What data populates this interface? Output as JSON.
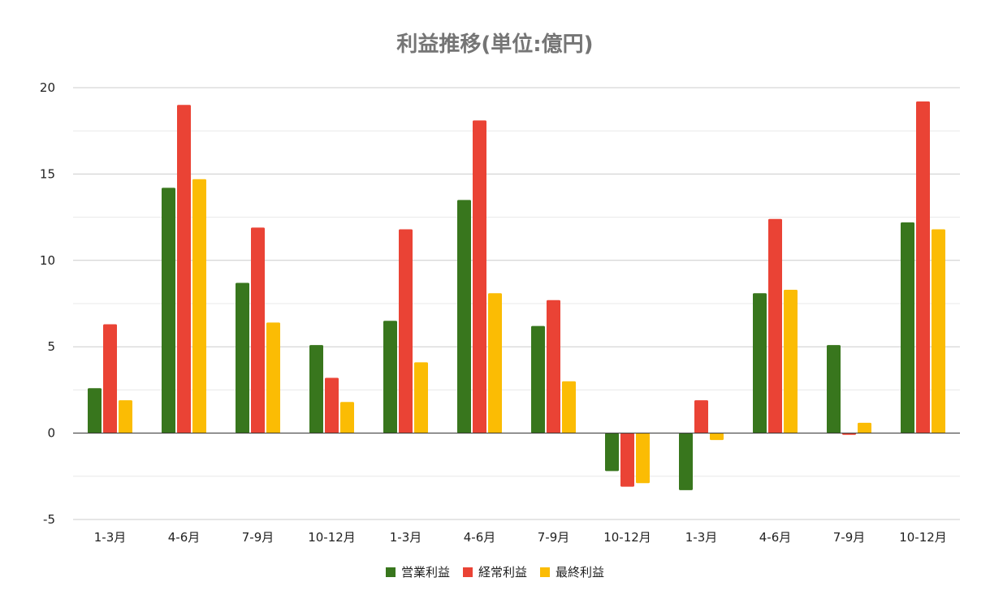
{
  "chart_data": {
    "type": "bar",
    "title": "利益推移(単位:億円)",
    "xlabel": "",
    "ylabel": "",
    "ylim": [
      -5,
      20
    ],
    "yticks": [
      -5,
      0,
      5,
      10,
      15,
      20
    ],
    "grid": true,
    "legend_position": "bottom",
    "categories": [
      "1-3月",
      "4-6月",
      "7-9月",
      "10-12月",
      "1-3月",
      "4-6月",
      "7-9月",
      "10-12月",
      "1-3月",
      "4-6月",
      "7-9月",
      "10-12月"
    ],
    "series": [
      {
        "name": "営業利益",
        "color": "#38761d",
        "values": [
          2.6,
          14.2,
          8.7,
          5.1,
          6.5,
          13.5,
          6.2,
          -2.2,
          -3.3,
          8.1,
          5.1,
          12.2
        ]
      },
      {
        "name": "経常利益",
        "color": "#ea4335",
        "values": [
          6.3,
          19.0,
          11.9,
          3.2,
          11.8,
          18.1,
          7.7,
          -3.1,
          1.9,
          12.4,
          -0.1,
          19.2
        ]
      },
      {
        "name": "最終利益",
        "color": "#fbbc04",
        "values": [
          1.9,
          14.7,
          6.4,
          1.8,
          4.1,
          8.1,
          3.0,
          -2.9,
          -0.4,
          8.3,
          0.6,
          11.8
        ]
      }
    ]
  }
}
